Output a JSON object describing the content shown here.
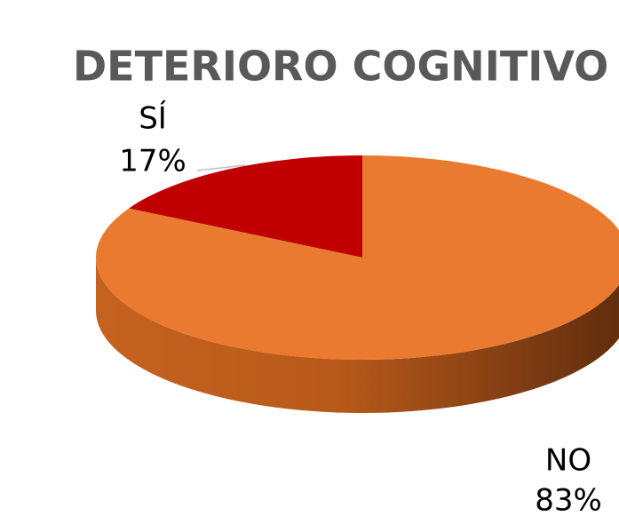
{
  "chart_data": {
    "type": "pie",
    "title": "DETERIORO COGNITIVO",
    "categories": [
      "SÍ",
      "NO"
    ],
    "values": [
      17,
      83
    ],
    "value_labels": [
      "17%",
      "83%"
    ],
    "colors": [
      "#c00000",
      "#e97a30"
    ]
  }
}
